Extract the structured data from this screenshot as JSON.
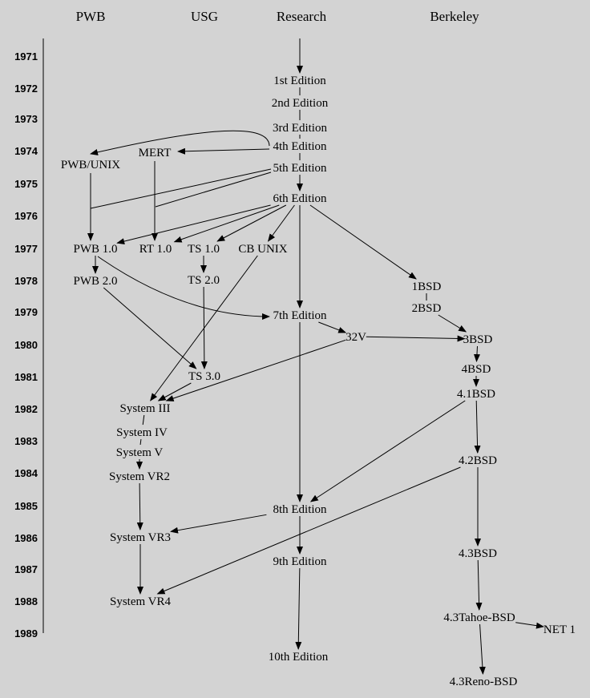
{
  "columns": [
    {
      "id": "pwb",
      "label": "PWB"
    },
    {
      "id": "usg",
      "label": "USG"
    },
    {
      "id": "research",
      "label": "Research"
    },
    {
      "id": "berkeley",
      "label": "Berkeley"
    }
  ],
  "years": [
    "1971",
    "1972",
    "1973",
    "1974",
    "1975",
    "1976",
    "1977",
    "1978",
    "1979",
    "1980",
    "1981",
    "1982",
    "1983",
    "1984",
    "1985",
    "1986",
    "1987",
    "1988",
    "1989"
  ],
  "nodes": [
    {
      "id": "e1",
      "label": "1st Edition"
    },
    {
      "id": "e2",
      "label": "2nd Edition"
    },
    {
      "id": "e3",
      "label": "3rd Edition"
    },
    {
      "id": "e4",
      "label": "4th Edition"
    },
    {
      "id": "e5",
      "label": "5th Edition"
    },
    {
      "id": "e6",
      "label": "6th Edition"
    },
    {
      "id": "mert",
      "label": "MERT"
    },
    {
      "id": "pwbunix",
      "label": "PWB/UNIX"
    },
    {
      "id": "pwb1",
      "label": "PWB 1.0"
    },
    {
      "id": "rt1",
      "label": "RT 1.0"
    },
    {
      "id": "ts1",
      "label": "TS 1.0"
    },
    {
      "id": "cb",
      "label": "CB UNIX"
    },
    {
      "id": "pwb2",
      "label": "PWB 2.0"
    },
    {
      "id": "ts2",
      "label": "TS 2.0"
    },
    {
      "id": "bsd1",
      "label": "1BSD"
    },
    {
      "id": "bsd2",
      "label": "2BSD"
    },
    {
      "id": "e7",
      "label": "7th Edition"
    },
    {
      "id": "v32",
      "label": "32V"
    },
    {
      "id": "bsd3",
      "label": "3BSD"
    },
    {
      "id": "ts3",
      "label": "TS 3.0"
    },
    {
      "id": "bsd4",
      "label": "4BSD"
    },
    {
      "id": "bsd41",
      "label": "4.1BSD"
    },
    {
      "id": "s3",
      "label": "System III"
    },
    {
      "id": "s4",
      "label": "System IV"
    },
    {
      "id": "s5",
      "label": "System V"
    },
    {
      "id": "svr2",
      "label": "System VR2"
    },
    {
      "id": "bsd42",
      "label": "4.2BSD"
    },
    {
      "id": "e8",
      "label": "8th Edition"
    },
    {
      "id": "svr3",
      "label": "System VR3"
    },
    {
      "id": "bsd43",
      "label": "4.3BSD"
    },
    {
      "id": "e9",
      "label": "9th Edition"
    },
    {
      "id": "svr4",
      "label": "System VR4"
    },
    {
      "id": "tahoe",
      "label": "4.3Tahoe-BSD"
    },
    {
      "id": "net1",
      "label": "NET 1"
    },
    {
      "id": "e10",
      "label": "10th Edition"
    },
    {
      "id": "reno",
      "label": "4.3Reno-BSD"
    }
  ],
  "edges": [
    {
      "from": "start",
      "to": "e1",
      "arrow": true
    },
    {
      "from": "e1",
      "to": "e2",
      "arrow": false
    },
    {
      "from": "e2",
      "to": "e3",
      "arrow": false
    },
    {
      "from": "e3",
      "to": "e4",
      "arrow": false
    },
    {
      "from": "e4",
      "to": "e5",
      "arrow": false
    },
    {
      "from": "e5",
      "to": "e6",
      "arrow": true
    },
    {
      "from": "e4",
      "to": "mert",
      "arrow": true
    },
    {
      "from": "e4",
      "to": "pwbunix",
      "arrow": true
    },
    {
      "from": "e5",
      "to": "pwb1",
      "arrow": false
    },
    {
      "from": "e5",
      "to": "rt1",
      "arrow": false
    },
    {
      "from": "pwbunix",
      "to": "pwb1",
      "arrow": true
    },
    {
      "from": "mert",
      "to": "rt1",
      "arrow": true
    },
    {
      "from": "e6",
      "to": "pwb1",
      "arrow": true
    },
    {
      "from": "e6",
      "to": "rt1",
      "arrow": true
    },
    {
      "from": "e6",
      "to": "ts1",
      "arrow": true
    },
    {
      "from": "e6",
      "to": "cb",
      "arrow": true
    },
    {
      "from": "e6",
      "to": "e7",
      "arrow": true
    },
    {
      "from": "e6",
      "to": "bsd1",
      "arrow": true
    },
    {
      "from": "pwb1",
      "to": "pwb2",
      "arrow": true
    },
    {
      "from": "pwb1",
      "to": "e7",
      "arrow": true
    },
    {
      "from": "ts1",
      "to": "ts2",
      "arrow": true
    },
    {
      "from": "pwb2",
      "to": "ts3",
      "arrow": true
    },
    {
      "from": "ts2",
      "to": "ts3",
      "arrow": true
    },
    {
      "from": "cb",
      "to": "s3",
      "arrow": true
    },
    {
      "from": "ts3",
      "to": "s3",
      "arrow": true
    },
    {
      "from": "v32",
      "to": "s3",
      "arrow": true
    },
    {
      "from": "bsd1",
      "to": "bsd2",
      "arrow": false
    },
    {
      "from": "bsd2",
      "to": "bsd3",
      "arrow": true
    },
    {
      "from": "e7",
      "to": "v32",
      "arrow": true
    },
    {
      "from": "v32",
      "to": "bsd3",
      "arrow": true
    },
    {
      "from": "bsd3",
      "to": "bsd4",
      "arrow": true
    },
    {
      "from": "bsd4",
      "to": "bsd41",
      "arrow": true
    },
    {
      "from": "bsd41",
      "to": "bsd42",
      "arrow": true
    },
    {
      "from": "bsd41",
      "to": "e8",
      "arrow": true
    },
    {
      "from": "e7",
      "to": "e8",
      "arrow": true
    },
    {
      "from": "s3",
      "to": "s4",
      "arrow": false
    },
    {
      "from": "s4",
      "to": "s5",
      "arrow": false
    },
    {
      "from": "s5",
      "to": "svr2",
      "arrow": true
    },
    {
      "from": "svr2",
      "to": "svr3",
      "arrow": true
    },
    {
      "from": "e8",
      "to": "svr3",
      "arrow": true
    },
    {
      "from": "bsd42",
      "to": "svr4",
      "arrow": true
    },
    {
      "from": "svr3",
      "to": "svr4",
      "arrow": true
    },
    {
      "from": "e8",
      "to": "e9",
      "arrow": true
    },
    {
      "from": "e9",
      "to": "e10",
      "arrow": true
    },
    {
      "from": "bsd42",
      "to": "bsd43",
      "arrow": true
    },
    {
      "from": "bsd43",
      "to": "tahoe",
      "arrow": true
    },
    {
      "from": "tahoe",
      "to": "net1",
      "arrow": true
    },
    {
      "from": "tahoe",
      "to": "reno",
      "arrow": true
    }
  ]
}
